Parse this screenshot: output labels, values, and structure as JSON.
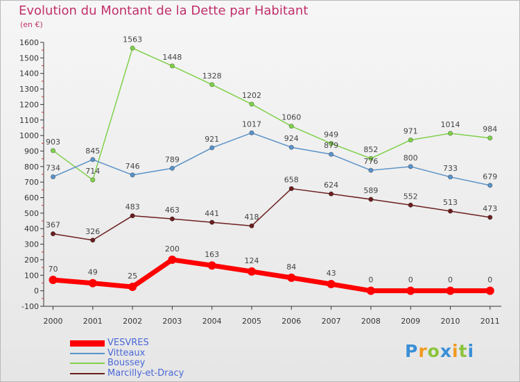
{
  "header": {
    "title": "Evolution du Montant de la Dette par Habitant",
    "subtitle": "(en €)"
  },
  "chart_data": {
    "type": "line",
    "title": "Evolution du Montant de la Dette par Habitant",
    "subtitle": "(en €)",
    "xlabel": "",
    "ylabel": "",
    "categories": [
      "2000",
      "2001",
      "2002",
      "2003",
      "2004",
      "2005",
      "2006",
      "2007",
      "2008",
      "2009",
      "2010",
      "2011"
    ],
    "ylim": [
      -100,
      1600
    ],
    "yticks": [
      "-100",
      "0",
      "100",
      "200",
      "300",
      "400",
      "500",
      "600",
      "700",
      "800",
      "900",
      "1000",
      "1100",
      "1200",
      "1300",
      "1400",
      "1500",
      "1600"
    ],
    "legend_position": "bottom-left",
    "grid": false,
    "series": [
      {
        "name": "Marcilly-et-Dracy",
        "color": "#6b1e1e",
        "values": [
          367,
          326,
          483,
          463,
          441,
          418,
          658,
          624,
          589,
          552,
          513,
          473
        ],
        "labels": [
          "367",
          "326",
          "483",
          "463",
          "441",
          "418",
          "658",
          "624",
          "589",
          "552",
          "513",
          "473"
        ]
      },
      {
        "name": "Boussey",
        "color": "#7fd04a",
        "values": [
          903,
          714,
          1563,
          1448,
          1328,
          1202,
          1060,
          949,
          852,
          971,
          1014,
          984
        ],
        "labels": [
          "903",
          "714",
          "1563",
          "1448",
          "1328",
          "1202",
          "1060",
          "949",
          "852",
          "971",
          "1014",
          "984"
        ]
      },
      {
        "name": "Vitteaux",
        "color": "#5a92c8",
        "values": [
          734,
          845,
          746,
          789,
          921,
          1017,
          924,
          879,
          776,
          800,
          733,
          679
        ],
        "labels": [
          "734",
          "845",
          "746",
          "789",
          "921",
          "1017",
          "924",
          "879",
          "776",
          "800",
          "733",
          "679"
        ]
      },
      {
        "name": "VESVRES",
        "color": "#ff0000",
        "values": [
          70,
          49,
          25,
          200,
          163,
          124,
          84,
          43,
          0,
          0,
          0,
          0
        ],
        "labels": [
          "70",
          "49",
          "25",
          "200",
          "163",
          "124",
          "84",
          "43",
          "0",
          "0",
          "0",
          "0"
        ]
      }
    ]
  },
  "legend": {
    "items": [
      {
        "label": "VESVRES",
        "color": "#ff0000"
      },
      {
        "label": "Vitteaux",
        "color": "#5a92c8"
      },
      {
        "label": "Boussey",
        "color": "#7fd04a"
      },
      {
        "label": "Marcilly-et-Dracy",
        "color": "#6b1e1e"
      }
    ]
  },
  "logo": {
    "letters": [
      "P",
      "r",
      "o",
      "x",
      "i",
      "t",
      "i"
    ],
    "colors": [
      "#3a8fd6",
      "#f29a1e",
      "#8cc43c",
      "#3a8fd6",
      "#f29a1e",
      "#8cc43c",
      "#3a8fd6"
    ]
  }
}
